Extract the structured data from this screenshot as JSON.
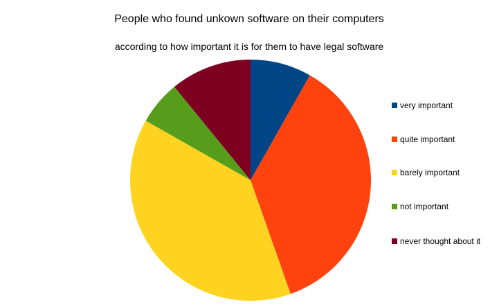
{
  "chart_data": {
    "type": "pie",
    "title": "People who found unkown software on their computers",
    "subtitle": "according to how important it is for them to have legal software",
    "categories": [
      "very important",
      "quite important",
      "barely important",
      "not important",
      "never thought about it"
    ],
    "values": [
      8.2,
      36.4,
      38.6,
      5.9,
      10.9
    ],
    "colors": [
      "#004586",
      "#ff420e",
      "#ffd320",
      "#579d1c",
      "#7e0021"
    ],
    "start_angle_deg": 0,
    "direction": "clockwise",
    "legend_position": "right"
  }
}
